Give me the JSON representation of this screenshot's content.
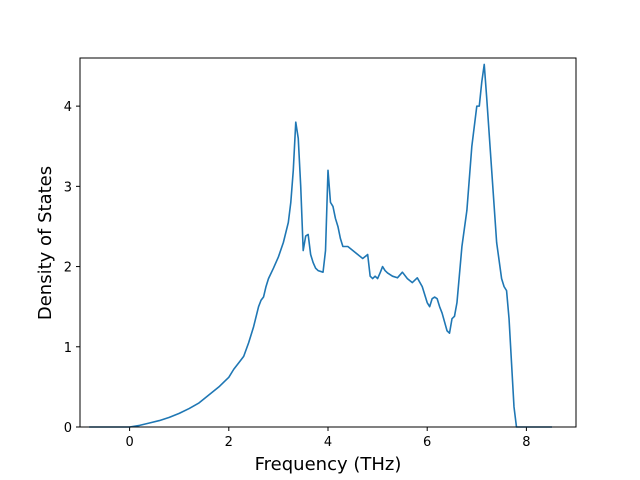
{
  "chart_data": {
    "type": "line",
    "title": "",
    "xlabel": "Frequency (THz)",
    "ylabel": "Density of States",
    "xlim": [
      -1.0,
      9.0
    ],
    "ylim": [
      0,
      4.6
    ],
    "xticks": [
      0,
      2,
      4,
      6,
      8
    ],
    "yticks": [
      0,
      1,
      2,
      3,
      4
    ],
    "grid": false,
    "legend": "none",
    "line_color": "#1f77b4",
    "series": [
      {
        "x": [
          -0.8,
          -0.5,
          0.0,
          0.2,
          0.4,
          0.6,
          0.8,
          1.0,
          1.2,
          1.4,
          1.6,
          1.8,
          2.0,
          2.1,
          2.2,
          2.3,
          2.4,
          2.5,
          2.6,
          2.65,
          2.7,
          2.75,
          2.8,
          2.9,
          3.0,
          3.1,
          3.2,
          3.25,
          3.3,
          3.35,
          3.4,
          3.45,
          3.5,
          3.55,
          3.6,
          3.65,
          3.7,
          3.75,
          3.8,
          3.9,
          3.95,
          4.0,
          4.05,
          4.1,
          4.15,
          4.2,
          4.25,
          4.3,
          4.4,
          4.5,
          4.6,
          4.7,
          4.8,
          4.85,
          4.9,
          4.95,
          5.0,
          5.05,
          5.1,
          5.15,
          5.2,
          5.3,
          5.4,
          5.5,
          5.6,
          5.7,
          5.8,
          5.9,
          6.0,
          6.05,
          6.1,
          6.15,
          6.2,
          6.25,
          6.3,
          6.4,
          6.45,
          6.5,
          6.55,
          6.6,
          6.7,
          6.8,
          6.9,
          7.0,
          7.05,
          7.1,
          7.15,
          7.2,
          7.3,
          7.4,
          7.5,
          7.55,
          7.6,
          7.65,
          7.7,
          7.75,
          7.8,
          8.0,
          8.5
        ],
        "y": [
          0,
          0,
          0,
          0.02,
          0.05,
          0.08,
          0.12,
          0.17,
          0.23,
          0.3,
          0.4,
          0.5,
          0.62,
          0.72,
          0.8,
          0.88,
          1.05,
          1.25,
          1.5,
          1.58,
          1.62,
          1.75,
          1.85,
          1.98,
          2.12,
          2.3,
          2.55,
          2.8,
          3.2,
          3.8,
          3.6,
          3.0,
          2.2,
          2.38,
          2.4,
          2.15,
          2.05,
          1.98,
          1.95,
          1.93,
          2.2,
          3.2,
          2.8,
          2.75,
          2.6,
          2.5,
          2.35,
          2.25,
          2.25,
          2.2,
          2.15,
          2.1,
          2.15,
          1.88,
          1.85,
          1.88,
          1.85,
          1.92,
          2.0,
          1.95,
          1.92,
          1.88,
          1.86,
          1.93,
          1.85,
          1.8,
          1.86,
          1.75,
          1.55,
          1.5,
          1.6,
          1.62,
          1.6,
          1.5,
          1.42,
          1.2,
          1.17,
          1.35,
          1.38,
          1.55,
          2.25,
          2.7,
          3.5,
          4.0,
          4.0,
          4.3,
          4.52,
          4.1,
          3.2,
          2.3,
          1.85,
          1.75,
          1.7,
          1.35,
          0.8,
          0.25,
          0,
          0,
          0
        ]
      }
    ]
  }
}
